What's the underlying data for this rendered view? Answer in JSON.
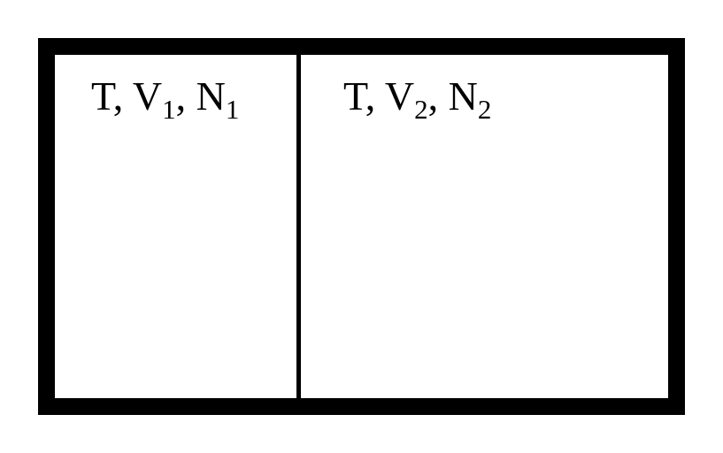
{
  "diagram": {
    "left_chamber": {
      "T": "T",
      "V": "V",
      "V_sub": "1",
      "N": "N",
      "N_sub": "1"
    },
    "right_chamber": {
      "T": "T",
      "V": "V",
      "V_sub": "2",
      "N": "N",
      "N_sub": "2"
    }
  }
}
